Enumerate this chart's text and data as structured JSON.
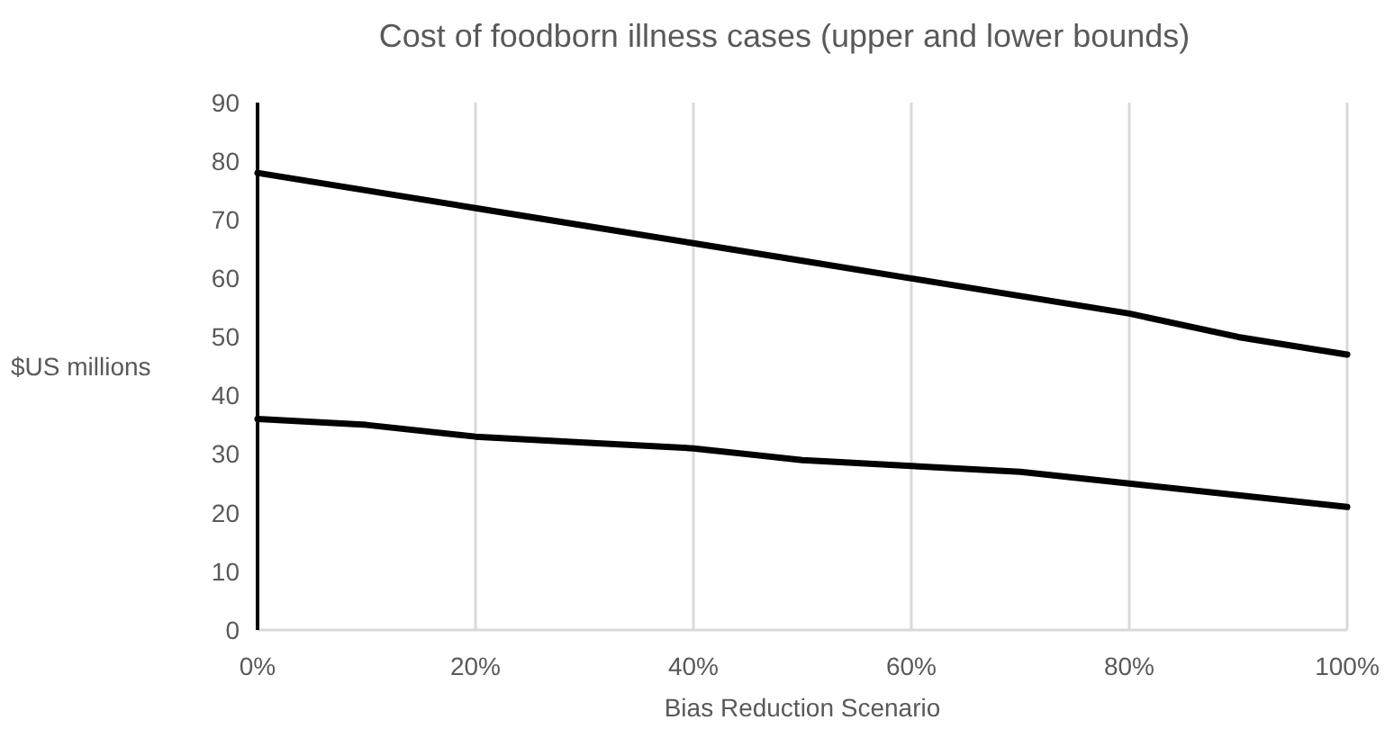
{
  "chart_data": {
    "type": "line",
    "title": "Cost of foodborn illness cases (upper and lower bounds)",
    "xlabel": "Bias Reduction Scenario",
    "ylabel": "$US millions",
    "x": [
      0,
      10,
      20,
      30,
      40,
      50,
      60,
      70,
      80,
      90,
      100
    ],
    "series": [
      {
        "color": "#000000",
        "values": [
          78,
          75,
          72,
          69,
          66,
          63,
          60,
          57,
          54,
          50,
          47
        ]
      },
      {
        "color": "#000000",
        "values": [
          36,
          35,
          33,
          32,
          31,
          29,
          28,
          27,
          25,
          23,
          21
        ]
      }
    ],
    "xlim": [
      0,
      100
    ],
    "xticks": [
      {
        "value": 0,
        "label": "0%"
      },
      {
        "value": 20,
        "label": "20%"
      },
      {
        "value": 40,
        "label": "40%"
      },
      {
        "value": 60,
        "label": "60%"
      },
      {
        "value": 80,
        "label": "80%"
      },
      {
        "value": 100,
        "label": "100%"
      }
    ],
    "ylim": [
      0,
      90
    ],
    "yticks": [
      0,
      10,
      20,
      30,
      40,
      50,
      60,
      70,
      80,
      90
    ],
    "grid": "x",
    "marker": "none",
    "line_style": "solid"
  }
}
